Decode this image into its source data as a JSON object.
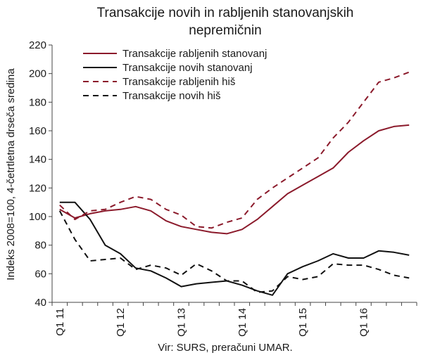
{
  "chart_data": {
    "type": "line",
    "title_line1": "Transakcije novih in rabljenih stanovanjskih",
    "title_line2": "nepremičnin",
    "ylabel": "Indeks 2008=100, 4-četrtletna drseča sredina",
    "source": "Vir: SURS, preračuni UMAR.",
    "ylim": [
      40,
      220
    ],
    "yticks": [
      40,
      60,
      80,
      100,
      120,
      140,
      160,
      180,
      200,
      220
    ],
    "x_labels": [
      "Q1 11",
      "Q1 12",
      "Q1 13",
      "Q1 14",
      "Q1 15",
      "Q1 16"
    ],
    "x_label_index": [
      0,
      4,
      8,
      12,
      16,
      20
    ],
    "n_points": 24,
    "legend_position": "top-left",
    "grid": false,
    "series": [
      {
        "name": "Transakcije rabljenih stanovanj",
        "color": "#8b1a2b",
        "dash": "solid",
        "values": [
          105,
          99,
          102,
          104,
          105,
          107,
          104,
          97,
          93,
          91,
          89,
          88,
          91,
          98,
          107,
          116,
          122,
          128,
          134,
          145,
          153,
          160,
          163,
          164
        ]
      },
      {
        "name": "Transakcije novih stanovanj",
        "color": "#111111",
        "dash": "solid",
        "values": [
          110,
          110,
          98,
          80,
          74,
          64,
          62,
          57,
          51,
          53,
          54,
          55,
          52,
          48,
          45,
          60,
          65,
          69,
          74,
          71,
          71,
          76,
          75,
          73
        ]
      },
      {
        "name": "Transakcije rabljenih hiš",
        "color": "#8b1a2b",
        "dash": "dashed",
        "values": [
          108,
          98,
          104,
          105,
          110,
          114,
          112,
          105,
          101,
          93,
          92,
          96,
          99,
          112,
          120,
          127,
          134,
          141,
          155,
          166,
          180,
          194,
          197,
          201
        ]
      },
      {
        "name": "Transakcije novih hiš",
        "color": "#111111",
        "dash": "dashed",
        "values": [
          104,
          84,
          69,
          70,
          71,
          63,
          66,
          64,
          59,
          67,
          62,
          55,
          55,
          47,
          48,
          58,
          56,
          58,
          67,
          66,
          66,
          63,
          59,
          57
        ]
      }
    ]
  }
}
